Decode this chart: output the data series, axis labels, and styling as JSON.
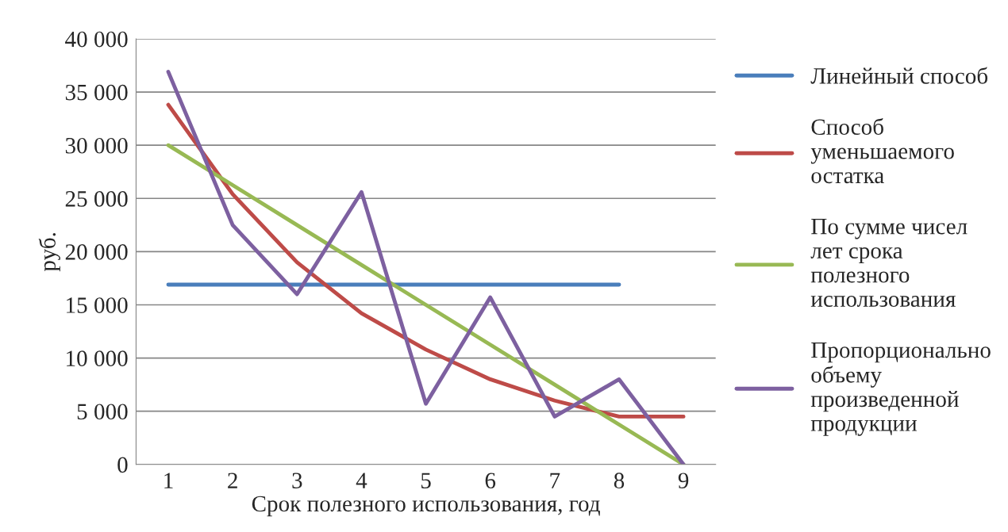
{
  "chart_data": {
    "type": "line",
    "xlabel": "Срок полезного использования, год",
    "ylabel": "руб.",
    "categories": [
      "1",
      "2",
      "3",
      "4",
      "5",
      "6",
      "7",
      "8",
      "9"
    ],
    "series": [
      {
        "name": "Линейный способ",
        "color": "#4a7ebb",
        "values": [
          16900,
          16900,
          16900,
          16900,
          16900,
          16900,
          16900,
          16900,
          null
        ]
      },
      {
        "name": "Способ уменьшаемого остатка",
        "color": "#be4b48",
        "values": [
          33800,
          25400,
          19000,
          14200,
          10800,
          8000,
          6000,
          4500,
          4500
        ]
      },
      {
        "name": "По сумме чисел лет срока полезного использования",
        "color": "#98b954",
        "values": [
          30000,
          26250,
          22500,
          18750,
          15000,
          11250,
          7500,
          3750,
          0
        ]
      },
      {
        "name": "Пропорционально объему произведенной продукции",
        "color": "#7d60a0",
        "values": [
          36900,
          22500,
          16000,
          25600,
          5700,
          15700,
          4500,
          8000,
          0
        ]
      }
    ],
    "ylim": [
      0,
      40000
    ],
    "yticks": [
      0,
      {
        "value": 5000,
        "label": "5 000"
      },
      {
        "value": 10000,
        "label": "10 000"
      },
      {
        "value": 15000,
        "label": "15 000"
      },
      {
        "value": 20000,
        "label": "20 000"
      },
      {
        "value": 25000,
        "label": "25 000"
      },
      {
        "value": 30000,
        "label": "30 000"
      },
      {
        "value": 35000,
        "label": "35 000"
      },
      {
        "value": 40000,
        "label": "40 000"
      }
    ],
    "grid": "y",
    "legend": "right",
    "marker": "none",
    "line_style": "solid"
  }
}
